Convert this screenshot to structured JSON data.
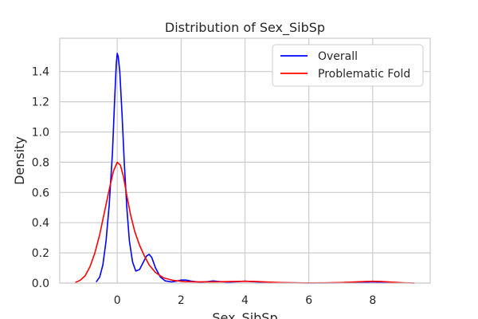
{
  "chart_data": {
    "type": "line",
    "title": "Distribution of Sex_SibSp",
    "xlabel": "Sex_SibSp",
    "ylabel": "Density",
    "xlim": [
      -1.8,
      9.8
    ],
    "ylim": [
      0,
      1.62
    ],
    "x_ticks": [
      0,
      2,
      4,
      6,
      8
    ],
    "y_ticks": [
      0.0,
      0.2,
      0.4,
      0.6,
      0.8,
      1.0,
      1.2,
      1.4
    ],
    "x_tick_labels": [
      "0",
      "2",
      "4",
      "6",
      "8"
    ],
    "y_tick_labels": [
      "0.0",
      "0.2",
      "0.4",
      "0.6",
      "0.8",
      "1.0",
      "1.2",
      "1.4"
    ],
    "grid": true,
    "legend_position": "top-right",
    "series": [
      {
        "name": "Overall",
        "color": "#0000ff",
        "points": [
          [
            -0.65,
            0.01
          ],
          [
            -0.55,
            0.04
          ],
          [
            -0.45,
            0.12
          ],
          [
            -0.35,
            0.28
          ],
          [
            -0.25,
            0.52
          ],
          [
            -0.15,
            0.86
          ],
          [
            -0.08,
            1.22
          ],
          [
            -0.03,
            1.45
          ],
          [
            0.0,
            1.52
          ],
          [
            0.03,
            1.5
          ],
          [
            0.08,
            1.4
          ],
          [
            0.15,
            1.12
          ],
          [
            0.22,
            0.8
          ],
          [
            0.3,
            0.5
          ],
          [
            0.38,
            0.28
          ],
          [
            0.48,
            0.14
          ],
          [
            0.58,
            0.08
          ],
          [
            0.7,
            0.09
          ],
          [
            0.82,
            0.14
          ],
          [
            0.92,
            0.18
          ],
          [
            1.0,
            0.19
          ],
          [
            1.08,
            0.17
          ],
          [
            1.2,
            0.1
          ],
          [
            1.35,
            0.04
          ],
          [
            1.5,
            0.015
          ],
          [
            1.7,
            0.008
          ],
          [
            1.9,
            0.015
          ],
          [
            2.0,
            0.02
          ],
          [
            2.15,
            0.02
          ],
          [
            2.35,
            0.012
          ],
          [
            2.6,
            0.006
          ],
          [
            2.85,
            0.01
          ],
          [
            3.0,
            0.014
          ],
          [
            3.2,
            0.01
          ],
          [
            3.5,
            0.006
          ],
          [
            3.8,
            0.01
          ],
          [
            4.0,
            0.013
          ],
          [
            4.2,
            0.01
          ],
          [
            4.6,
            0.005
          ],
          [
            5.0,
            0.003
          ],
          [
            5.5,
            0.002
          ],
          [
            6.0,
            0.001
          ],
          [
            6.5,
            0.001
          ],
          [
            7.0,
            0.0015
          ],
          [
            7.5,
            0.003
          ],
          [
            7.8,
            0.006
          ],
          [
            8.0,
            0.008
          ],
          [
            8.2,
            0.006
          ],
          [
            8.5,
            0.003
          ],
          [
            8.8,
            0.0015
          ]
        ]
      },
      {
        "name": "Problematic Fold",
        "color": "#ff0000",
        "points": [
          [
            -1.3,
            0.005
          ],
          [
            -1.15,
            0.02
          ],
          [
            -1.0,
            0.05
          ],
          [
            -0.85,
            0.11
          ],
          [
            -0.7,
            0.2
          ],
          [
            -0.55,
            0.32
          ],
          [
            -0.4,
            0.47
          ],
          [
            -0.25,
            0.62
          ],
          [
            -0.12,
            0.74
          ],
          [
            0.0,
            0.8
          ],
          [
            0.1,
            0.78
          ],
          [
            0.2,
            0.7
          ],
          [
            0.3,
            0.58
          ],
          [
            0.42,
            0.45
          ],
          [
            0.55,
            0.34
          ],
          [
            0.7,
            0.25
          ],
          [
            0.85,
            0.18
          ],
          [
            1.0,
            0.12
          ],
          [
            1.2,
            0.07
          ],
          [
            1.45,
            0.035
          ],
          [
            1.75,
            0.018
          ],
          [
            2.1,
            0.01
          ],
          [
            2.5,
            0.008
          ],
          [
            3.0,
            0.008
          ],
          [
            3.5,
            0.01
          ],
          [
            4.0,
            0.012
          ],
          [
            4.4,
            0.01
          ],
          [
            4.8,
            0.006
          ],
          [
            5.2,
            0.003
          ],
          [
            5.6,
            0.0015
          ],
          [
            6.0,
            0.001
          ],
          [
            6.5,
            0.002
          ],
          [
            7.0,
            0.004
          ],
          [
            7.5,
            0.008
          ],
          [
            7.8,
            0.011
          ],
          [
            8.0,
            0.012
          ],
          [
            8.3,
            0.01
          ],
          [
            8.6,
            0.006
          ],
          [
            9.0,
            0.002
          ],
          [
            9.3,
            0.0005
          ]
        ]
      }
    ]
  }
}
